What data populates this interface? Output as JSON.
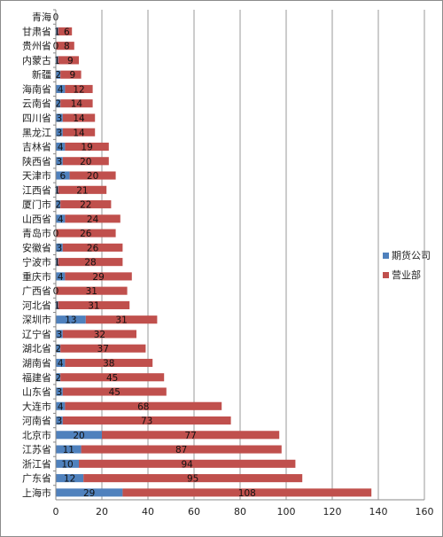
{
  "chart_data": {
    "type": "bar",
    "orientation": "horizontal",
    "stacked": true,
    "categories": [
      "青海",
      "甘肃省",
      "贵州省",
      "内蒙古",
      "新疆",
      "海南省",
      "云南省",
      "四川省",
      "黑龙江",
      "吉林省",
      "陕西省",
      "天津市",
      "江西省",
      "厦门市",
      "山西省",
      "青岛市",
      "安徽省",
      "宁波市",
      "重庆市",
      "广西省",
      "河北省",
      "深圳市",
      "辽宁省",
      "湖北省",
      "湖南省",
      "福建省",
      "山东省",
      "大连市",
      "河南省",
      "北京市",
      "江苏省",
      "浙江省",
      "广东省",
      "上海市"
    ],
    "series": [
      {
        "name": "期货公司",
        "color": "#4f81bd",
        "values": [
          0,
          1,
          0,
          1,
          2,
          4,
          2,
          3,
          3,
          4,
          3,
          6,
          1,
          2,
          4,
          0,
          3,
          1,
          4,
          0,
          1,
          13,
          3,
          2,
          4,
          2,
          3,
          4,
          3,
          20,
          11,
          10,
          12,
          29
        ]
      },
      {
        "name": "营业部",
        "color": "#c0504d",
        "values": [
          0,
          6,
          8,
          9,
          9,
          12,
          14,
          14,
          14,
          19,
          20,
          20,
          21,
          22,
          24,
          26,
          26,
          28,
          29,
          31,
          31,
          31,
          32,
          37,
          38,
          45,
          45,
          68,
          73,
          77,
          87,
          94,
          95,
          108
        ]
      }
    ],
    "x_ticks": [
      "0",
      "20",
      "40",
      "60",
      "80",
      "100",
      "120",
      "140",
      "160"
    ],
    "xlim": [
      0,
      160
    ],
    "grid": true,
    "legend": "right"
  }
}
